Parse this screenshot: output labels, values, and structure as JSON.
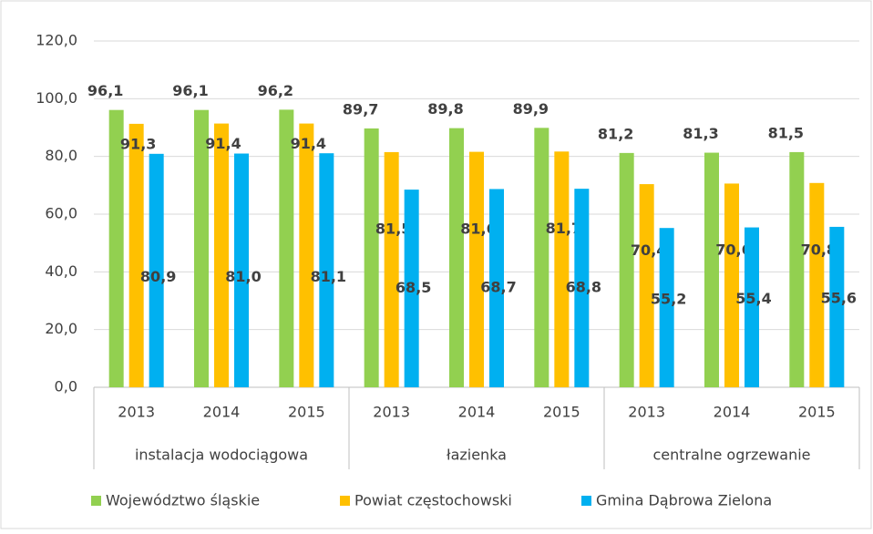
{
  "chart_data": {
    "type": "bar",
    "categories": [
      "2013",
      "2014",
      "2015",
      "2013",
      "2014",
      "2015",
      "2013",
      "2014",
      "2015"
    ],
    "groups": [
      "instalacja wodociągowa",
      "łazienka",
      "centralne ogrzewanie"
    ],
    "series": [
      {
        "name": "Województwo śląskie",
        "color": "#92d050",
        "values": [
          96.1,
          96.1,
          96.2,
          89.7,
          89.8,
          89.9,
          81.2,
          81.3,
          81.5
        ],
        "value_labels": [
          "96,1",
          "96,1",
          "96,2",
          "89,7",
          "89,8",
          "89,9",
          "81,2",
          "81,3",
          "81,5"
        ]
      },
      {
        "name": "Powiat częstochowski",
        "color": "#ffc000",
        "values": [
          91.3,
          91.4,
          91.4,
          81.5,
          81.6,
          81.7,
          70.4,
          70.6,
          70.8
        ],
        "value_labels": [
          "91,3",
          "91,4",
          "91,4",
          "81,5",
          "81,6",
          "81,7",
          "70,4",
          "70,6",
          "70,8"
        ]
      },
      {
        "name": "Gmina Dąbrowa Zielona",
        "color": "#00b0f0",
        "values": [
          80.9,
          81.0,
          81.1,
          68.5,
          68.7,
          68.8,
          55.2,
          55.4,
          55.6
        ],
        "value_labels": [
          "80,9",
          "81,0",
          "81,1",
          "68,5",
          "68,7",
          "68,8",
          "55,2",
          "55,4",
          "55,6"
        ]
      }
    ],
    "ylim": [
      0,
      120
    ],
    "yticks": [
      {
        "value": 0,
        "label": "0,0"
      },
      {
        "value": 20,
        "label": "20,0"
      },
      {
        "value": 40,
        "label": "40,0"
      },
      {
        "value": 60,
        "label": "60,0"
      },
      {
        "value": 80,
        "label": "80,0"
      },
      {
        "value": 100,
        "label": "100,0"
      },
      {
        "value": 120,
        "label": "120,0"
      }
    ],
    "grid": true
  }
}
